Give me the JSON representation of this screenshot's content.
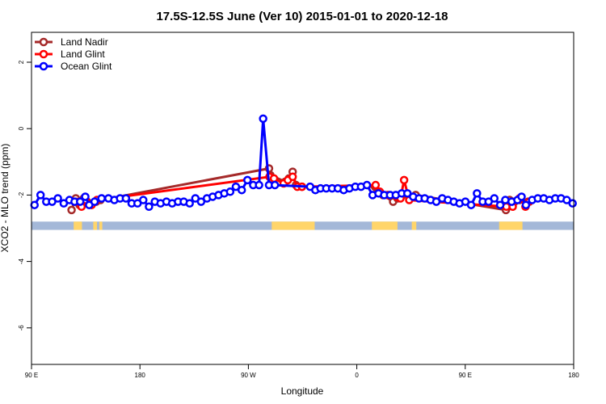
{
  "chart_data": {
    "type": "line",
    "title": "17.5S-12.5S June (Ver 10)   2015-01-01 to 2020-12-18",
    "xlabel": "Longitude",
    "ylabel": "XCO2 - MLO trend (ppm)",
    "xlim": [
      90,
      450
    ],
    "ylim": [
      -7.1,
      2.9
    ],
    "x_ticks": [
      {
        "value": 90,
        "label": "90 E"
      },
      {
        "value": 162,
        "label": "180"
      },
      {
        "value": 234,
        "label": "90 W"
      },
      {
        "value": 306,
        "label": "0"
      },
      {
        "value": 378,
        "label": "90 E"
      },
      {
        "value": 450,
        "label": "180"
      }
    ],
    "y_ticks": [
      {
        "value": 2,
        "label": "2"
      },
      {
        "value": 0,
        "label": "0"
      },
      {
        "value": -2,
        "label": "-2"
      },
      {
        "value": -4,
        "label": "-4"
      },
      {
        "value": -6,
        "label": "-6"
      }
    ],
    "grid": false,
    "legend_position": "top-left",
    "series": [
      {
        "name": "Land Nadir",
        "color": "#a52a2a",
        "points": [
          [
            116.6,
            -2.45
          ],
          [
            119.4,
            -2.1
          ],
          [
            121.9,
            -2.3
          ],
          [
            124.7,
            -2.1
          ],
          [
            126.9,
            -2.2
          ],
          [
            132.9,
            -2.2
          ],
          [
            135.8,
            -2.15
          ],
          [
            247.7,
            -1.2
          ],
          [
            248.6,
            -1.4
          ],
          [
            258.4,
            -1.6
          ],
          [
            260.9,
            -1.5
          ],
          [
            263.4,
            -1.3
          ],
          [
            265.6,
            -1.7
          ],
          [
            269.6,
            -1.75
          ],
          [
            318.1,
            -1.75
          ],
          [
            319.9,
            -1.9
          ],
          [
            323.4,
            -2.0
          ],
          [
            330.1,
            -2.2
          ],
          [
            333.0,
            -2.1
          ],
          [
            340.8,
            -2.05
          ],
          [
            345.1,
            -2.0
          ],
          [
            405.0,
            -2.45
          ],
          [
            407.5,
            -2.15
          ],
          [
            410.7,
            -2.2
          ],
          [
            414.0,
            -2.15
          ],
          [
            419.8,
            -2.2
          ]
        ]
      },
      {
        "name": "Land Glint",
        "color": "#ff0000",
        "points": [
          [
            119.4,
            -2.2
          ],
          [
            123.2,
            -2.35
          ],
          [
            126.0,
            -2.15
          ],
          [
            129.9,
            -2.3
          ],
          [
            133.4,
            -2.15
          ],
          [
            248.0,
            -1.45
          ],
          [
            251.0,
            -1.5
          ],
          [
            257.4,
            -1.65
          ],
          [
            260.2,
            -1.55
          ],
          [
            263.4,
            -1.45
          ],
          [
            266.5,
            -1.75
          ],
          [
            269.6,
            -1.75
          ],
          [
            318.5,
            -1.7
          ],
          [
            321.3,
            -1.9
          ],
          [
            326.6,
            -2.0
          ],
          [
            332.6,
            -2.05
          ],
          [
            335.0,
            -2.1
          ],
          [
            337.4,
            -1.55
          ],
          [
            340.8,
            -2.15
          ],
          [
            405.3,
            -2.35
          ],
          [
            409.5,
            -2.35
          ],
          [
            414.0,
            -2.1
          ],
          [
            418.0,
            -2.35
          ],
          [
            420.5,
            -2.2
          ]
        ]
      },
      {
        "name": "Ocean Glint",
        "color": "#0000ff",
        "points": [
          [
            92.0,
            -2.3
          ],
          [
            96.0,
            -2.0
          ],
          [
            99.8,
            -2.2
          ],
          [
            103.7,
            -2.2
          ],
          [
            107.5,
            -2.1
          ],
          [
            111.4,
            -2.25
          ],
          [
            115.2,
            -2.15
          ],
          [
            118.6,
            -2.2
          ],
          [
            122.3,
            -2.2
          ],
          [
            125.7,
            -2.05
          ],
          [
            128.3,
            -2.3
          ],
          [
            131.9,
            -2.2
          ],
          [
            136.5,
            -2.1
          ],
          [
            141.1,
            -2.1
          ],
          [
            145.0,
            -2.15
          ],
          [
            148.8,
            -2.1
          ],
          [
            152.7,
            -2.1
          ],
          [
            156.5,
            -2.25
          ],
          [
            160.4,
            -2.25
          ],
          [
            164.2,
            -2.15
          ],
          [
            168.0,
            -2.35
          ],
          [
            171.9,
            -2.2
          ],
          [
            175.7,
            -2.25
          ],
          [
            179.6,
            -2.2
          ],
          [
            183.4,
            -2.25
          ],
          [
            187.3,
            -2.2
          ],
          [
            191.1,
            -2.2
          ],
          [
            195.0,
            -2.25
          ],
          [
            198.8,
            -2.1
          ],
          [
            202.6,
            -2.2
          ],
          [
            206.5,
            -2.1
          ],
          [
            210.3,
            -2.05
          ],
          [
            214.2,
            -2.0
          ],
          [
            218.0,
            -1.95
          ],
          [
            221.9,
            -1.9
          ],
          [
            225.7,
            -1.75
          ],
          [
            229.6,
            -1.85
          ],
          [
            233.4,
            -1.55
          ],
          [
            237.2,
            -1.7
          ],
          [
            241.1,
            -1.7
          ],
          [
            243.8,
            0.3
          ],
          [
            247.7,
            -1.7
          ],
          [
            251.6,
            -1.7
          ],
          [
            275.0,
            -1.75
          ],
          [
            278.5,
            -1.85
          ],
          [
            281.9,
            -1.8
          ],
          [
            285.7,
            -1.8
          ],
          [
            289.6,
            -1.8
          ],
          [
            293.4,
            -1.8
          ],
          [
            297.3,
            -1.85
          ],
          [
            301.1,
            -1.8
          ],
          [
            305.0,
            -1.75
          ],
          [
            308.8,
            -1.75
          ],
          [
            312.7,
            -1.7
          ],
          [
            316.5,
            -2.0
          ],
          [
            320.4,
            -1.95
          ],
          [
            324.2,
            -2.0
          ],
          [
            328.1,
            -2.0
          ],
          [
            331.9,
            -2.0
          ],
          [
            335.8,
            -1.95
          ],
          [
            339.6,
            -1.95
          ],
          [
            343.4,
            -2.05
          ],
          [
            347.3,
            -2.1
          ],
          [
            351.1,
            -2.1
          ],
          [
            355.0,
            -2.15
          ],
          [
            358.8,
            -2.2
          ],
          [
            362.7,
            -2.1
          ],
          [
            366.5,
            -2.15
          ],
          [
            370.4,
            -2.2
          ],
          [
            374.2,
            -2.25
          ],
          [
            378.1,
            -2.2
          ],
          [
            381.9,
            -2.3
          ],
          [
            385.8,
            -1.95
          ],
          [
            389.6,
            -2.2
          ],
          [
            393.5,
            -2.2
          ],
          [
            397.3,
            -2.1
          ],
          [
            401.2,
            -2.3
          ],
          [
            404.6,
            -2.15
          ],
          [
            408.8,
            -2.2
          ],
          [
            412.7,
            -2.15
          ],
          [
            415.4,
            -2.05
          ],
          [
            418.3,
            -2.3
          ],
          [
            422.4,
            -2.15
          ],
          [
            426.2,
            -2.1
          ],
          [
            430.1,
            -2.1
          ],
          [
            433.9,
            -2.15
          ],
          [
            437.8,
            -2.1
          ],
          [
            441.6,
            -2.1
          ],
          [
            445.4,
            -2.15
          ],
          [
            449.3,
            -2.25
          ]
        ]
      }
    ],
    "landmask": {
      "y_range": [
        -3.05,
        -2.8
      ],
      "ocean_color": "#a4b8d8",
      "land_color": "#ffd56a",
      "land_segments": [
        [
          118.0,
          123.5
        ],
        [
          131.0,
          133.5
        ],
        [
          135.0,
          137.0
        ],
        [
          249.5,
          278.0
        ],
        [
          316.0,
          333.0
        ],
        [
          342.5,
          345.5
        ],
        [
          400.5,
          416.0
        ]
      ]
    }
  }
}
